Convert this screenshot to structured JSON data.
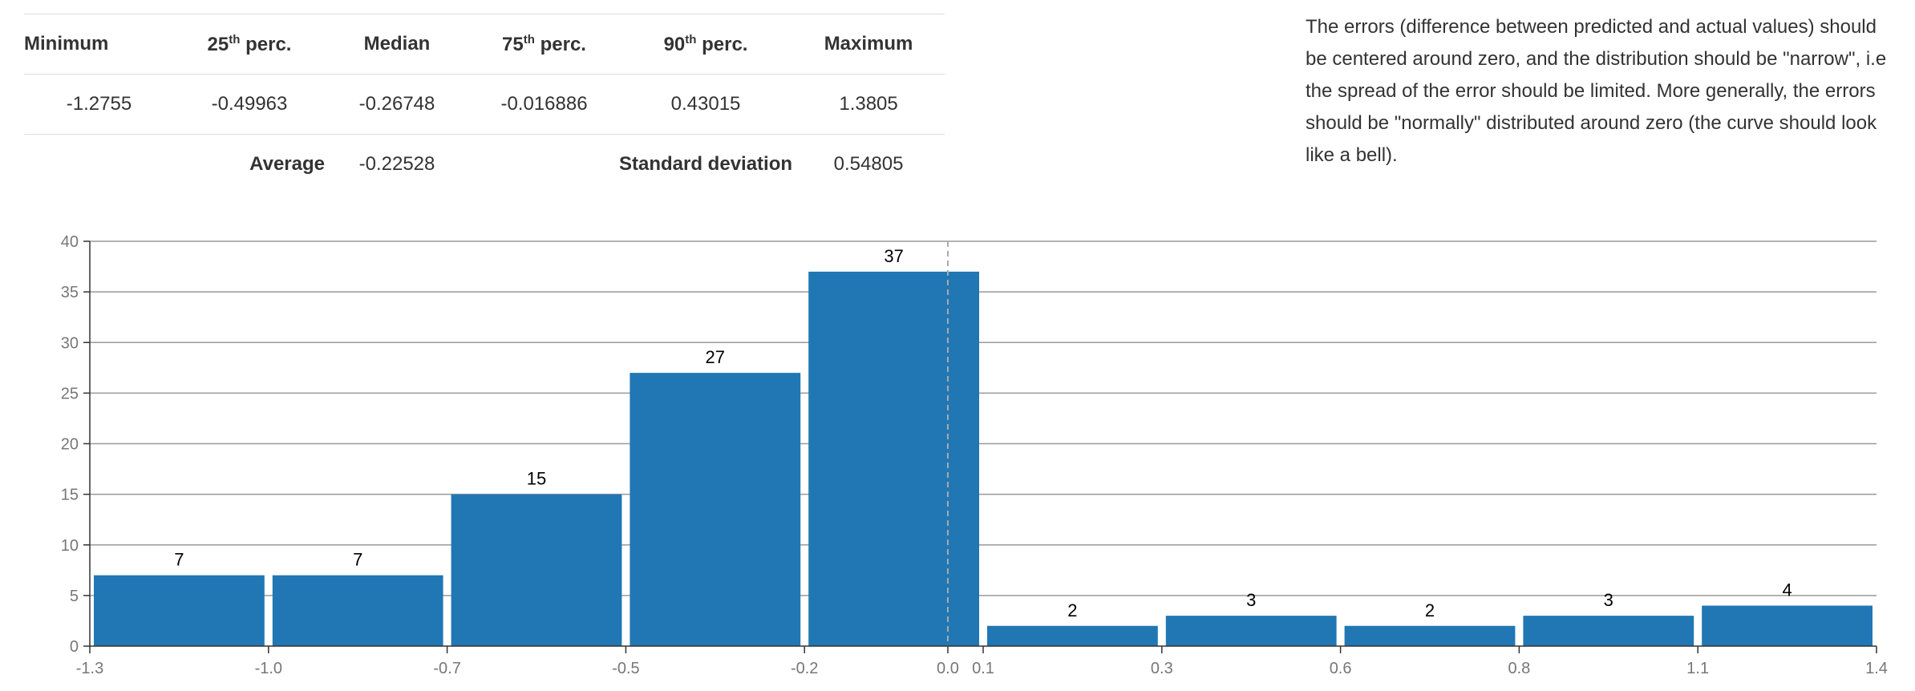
{
  "stats": {
    "headers": [
      {
        "base": "Minimum",
        "sup": "",
        "rest": ""
      },
      {
        "base": "25",
        "sup": "th",
        "rest": " perc."
      },
      {
        "base": "Median",
        "sup": "",
        "rest": ""
      },
      {
        "base": "75",
        "sup": "th",
        "rest": " perc."
      },
      {
        "base": "90",
        "sup": "th",
        "rest": " perc."
      },
      {
        "base": "Maximum",
        "sup": "",
        "rest": ""
      }
    ],
    "values": [
      "-1.2755",
      "-0.49963",
      "-0.26748",
      "-0.016886",
      "0.43015",
      "1.3805"
    ],
    "average_label": "Average",
    "average_value": "-0.22528",
    "std_label": "Standard deviation",
    "std_value": "0.54805"
  },
  "description": "The errors (difference between predicted and actual values) should be centered around zero, and the distribution should be \"narrow\", i.e the spread of the error should be limited. More generally, the errors should be \"normally\" distributed around zero (the curve should look like a bell).",
  "colors": {
    "bar": "#2077b4",
    "grid": "#999999",
    "axis": "#333333",
    "tick_text": "#777777",
    "label_text": "#000000",
    "zero_line": "#aaaaaa"
  },
  "chart_data": {
    "type": "bar",
    "title": "",
    "xlabel": "",
    "ylabel": "",
    "ylim": [
      0,
      40
    ],
    "yticks": [
      0,
      5,
      10,
      15,
      20,
      25,
      30,
      35,
      40
    ],
    "xlim": [
      -1.2755,
      1.3805
    ],
    "bins": [
      {
        "x0": -1.2755,
        "x1": -1.0099,
        "value": 7
      },
      {
        "x0": -1.0099,
        "x1": -0.7443,
        "value": 7
      },
      {
        "x0": -0.7443,
        "x1": -0.4787,
        "value": 15
      },
      {
        "x0": -0.4787,
        "x1": -0.2131,
        "value": 27
      },
      {
        "x0": -0.2131,
        "x1": 0.0525,
        "value": 37
      },
      {
        "x0": 0.0525,
        "x1": 0.3181,
        "value": 2
      },
      {
        "x0": 0.3181,
        "x1": 0.5837,
        "value": 3
      },
      {
        "x0": 0.5837,
        "x1": 0.8493,
        "value": 2
      },
      {
        "x0": 0.8493,
        "x1": 1.1149,
        "value": 3
      },
      {
        "x0": 1.1149,
        "x1": 1.3805,
        "value": 4
      }
    ],
    "xtick_labels": [
      "-1.3",
      "-1.0",
      "-0.7",
      "-0.5",
      "-0.2",
      "0.0",
      "0.1",
      "0.3",
      "0.6",
      "0.8",
      "1.1",
      "1.4"
    ],
    "zero_reference_line": 0,
    "grid": true,
    "legend": "none"
  }
}
